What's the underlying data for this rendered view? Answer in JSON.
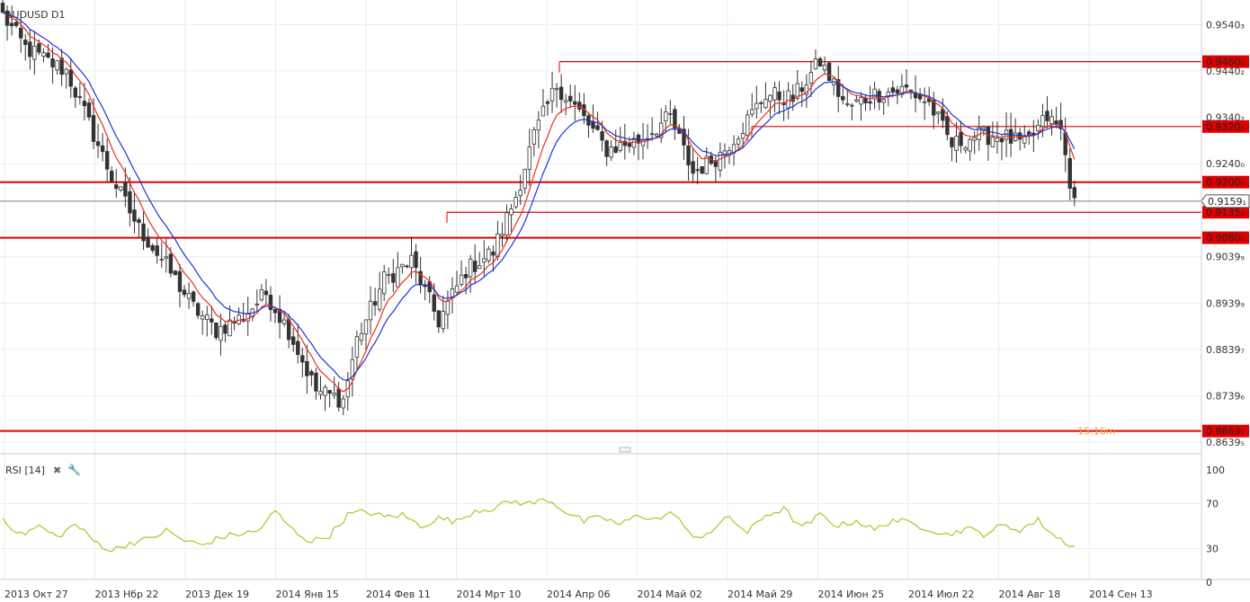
{
  "chart_data": {
    "type": "candlestick",
    "title": "AUDUSD D1",
    "y_range": [
      0.8643,
      0.9593
    ],
    "y_ticks": [
      "0.9540₃",
      "0.9440₂",
      "0.9340₂",
      "0.9240₀",
      "0.9039₉",
      "0.8939₉",
      "0.8839₇",
      "0.8739₆",
      "0.8639₅"
    ],
    "y_tick_values": [
      0.954,
      0.944,
      0.934,
      0.924,
      0.9039,
      0.8939,
      0.8839,
      0.8739,
      0.8639
    ],
    "x_labels": [
      "2013 Окт 27",
      "2013 Нбр 22",
      "2013 Дек 19",
      "2014 Янв 15",
      "2014 Фев 11",
      "2014 Мрт 10",
      "2014 Апр 06",
      "2014 Май 02",
      "2014 Май 29",
      "2014 Июн 25",
      "2014 Июл 22",
      "2014 Авг 18",
      "2014 Сен 13"
    ],
    "levels": [
      {
        "value": 0.946,
        "label": "0.9460₀",
        "color": "#e00000"
      },
      {
        "value": 0.932,
        "label": "0.9320₀",
        "color": "#e00000"
      },
      {
        "value": 0.92,
        "label": "0.9200₀",
        "color": "#e00000"
      },
      {
        "value": 0.9135,
        "label": "0.9135₀",
        "color": "#e00000"
      },
      {
        "value": 0.908,
        "label": "0.9080₀",
        "color": "#e00000"
      },
      {
        "value": 0.8663,
        "label": "0.8663₂",
        "color": "#e00000"
      }
    ],
    "current_price": {
      "value": 0.9159,
      "label": "0.9159₁"
    },
    "countdown": "15:16m",
    "close_anchors": [
      [
        0,
        0.956
      ],
      [
        5,
        0.949
      ],
      [
        10,
        0.946
      ],
      [
        14,
        0.944
      ],
      [
        18,
        0.935
      ],
      [
        24,
        0.921
      ],
      [
        30,
        0.91
      ],
      [
        36,
        0.902
      ],
      [
        42,
        0.893
      ],
      [
        47,
        0.888
      ],
      [
        53,
        0.891
      ],
      [
        58,
        0.896
      ],
      [
        63,
        0.888
      ],
      [
        69,
        0.875
      ],
      [
        75,
        0.873
      ],
      [
        78,
        0.886
      ],
      [
        84,
        0.899
      ],
      [
        90,
        0.903
      ],
      [
        96,
        0.89
      ],
      [
        102,
        0.901
      ],
      [
        108,
        0.905
      ],
      [
        113,
        0.917
      ],
      [
        117,
        0.93
      ],
      [
        122,
        0.941
      ],
      [
        127,
        0.935
      ],
      [
        133,
        0.927
      ],
      [
        140,
        0.929
      ],
      [
        147,
        0.934
      ],
      [
        152,
        0.922
      ],
      [
        158,
        0.926
      ],
      [
        163,
        0.932
      ],
      [
        168,
        0.939
      ],
      [
        174,
        0.938
      ],
      [
        180,
        0.946
      ],
      [
        186,
        0.936
      ],
      [
        192,
        0.939
      ],
      [
        199,
        0.94
      ],
      [
        204,
        0.937
      ],
      [
        209,
        0.928
      ],
      [
        214,
        0.93
      ],
      [
        220,
        0.93
      ],
      [
        225,
        0.928
      ],
      [
        230,
        0.934
      ],
      [
        233,
        0.931
      ],
      [
        236,
        0.915
      ]
    ],
    "rsi": {
      "label": "RSI [14]",
      "y_range": [
        0,
        100
      ],
      "y_ticks": [
        100,
        70,
        30,
        0
      ],
      "anchors": [
        [
          0,
          57
        ],
        [
          4,
          42
        ],
        [
          8,
          50
        ],
        [
          12,
          40
        ],
        [
          16,
          52
        ],
        [
          20,
          37
        ],
        [
          24,
          28
        ],
        [
          28,
          35
        ],
        [
          32,
          38
        ],
        [
          36,
          46
        ],
        [
          40,
          37
        ],
        [
          44,
          33
        ],
        [
          48,
          40
        ],
        [
          52,
          43
        ],
        [
          56,
          45
        ],
        [
          60,
          63
        ],
        [
          64,
          46
        ],
        [
          68,
          36
        ],
        [
          72,
          42
        ],
        [
          76,
          60
        ],
        [
          80,
          63
        ],
        [
          84,
          58
        ],
        [
          88,
          60
        ],
        [
          92,
          50
        ],
        [
          96,
          57
        ],
        [
          100,
          54
        ],
        [
          104,
          64
        ],
        [
          108,
          66
        ],
        [
          112,
          72
        ],
        [
          116,
          70
        ],
        [
          120,
          74
        ],
        [
          124,
          63
        ],
        [
          128,
          54
        ],
        [
          132,
          58
        ],
        [
          136,
          51
        ],
        [
          140,
          60
        ],
        [
          144,
          56
        ],
        [
          148,
          62
        ],
        [
          152,
          38
        ],
        [
          156,
          46
        ],
        [
          160,
          58
        ],
        [
          164,
          44
        ],
        [
          168,
          60
        ],
        [
          172,
          65
        ],
        [
          176,
          48
        ],
        [
          180,
          60
        ],
        [
          184,
          50
        ],
        [
          188,
          55
        ],
        [
          192,
          46
        ],
        [
          196,
          56
        ],
        [
          200,
          52
        ],
        [
          204,
          48
        ],
        [
          208,
          42
        ],
        [
          212,
          48
        ],
        [
          216,
          43
        ],
        [
          220,
          50
        ],
        [
          224,
          47
        ],
        [
          228,
          55
        ],
        [
          232,
          40
        ],
        [
          236,
          32
        ]
      ]
    },
    "series": [
      {
        "name": "EMA fast",
        "color": "#e8321e"
      },
      {
        "name": "EMA slow",
        "color": "#1f35d6"
      },
      {
        "name": "RSI",
        "color": "#a8c82a"
      }
    ]
  }
}
